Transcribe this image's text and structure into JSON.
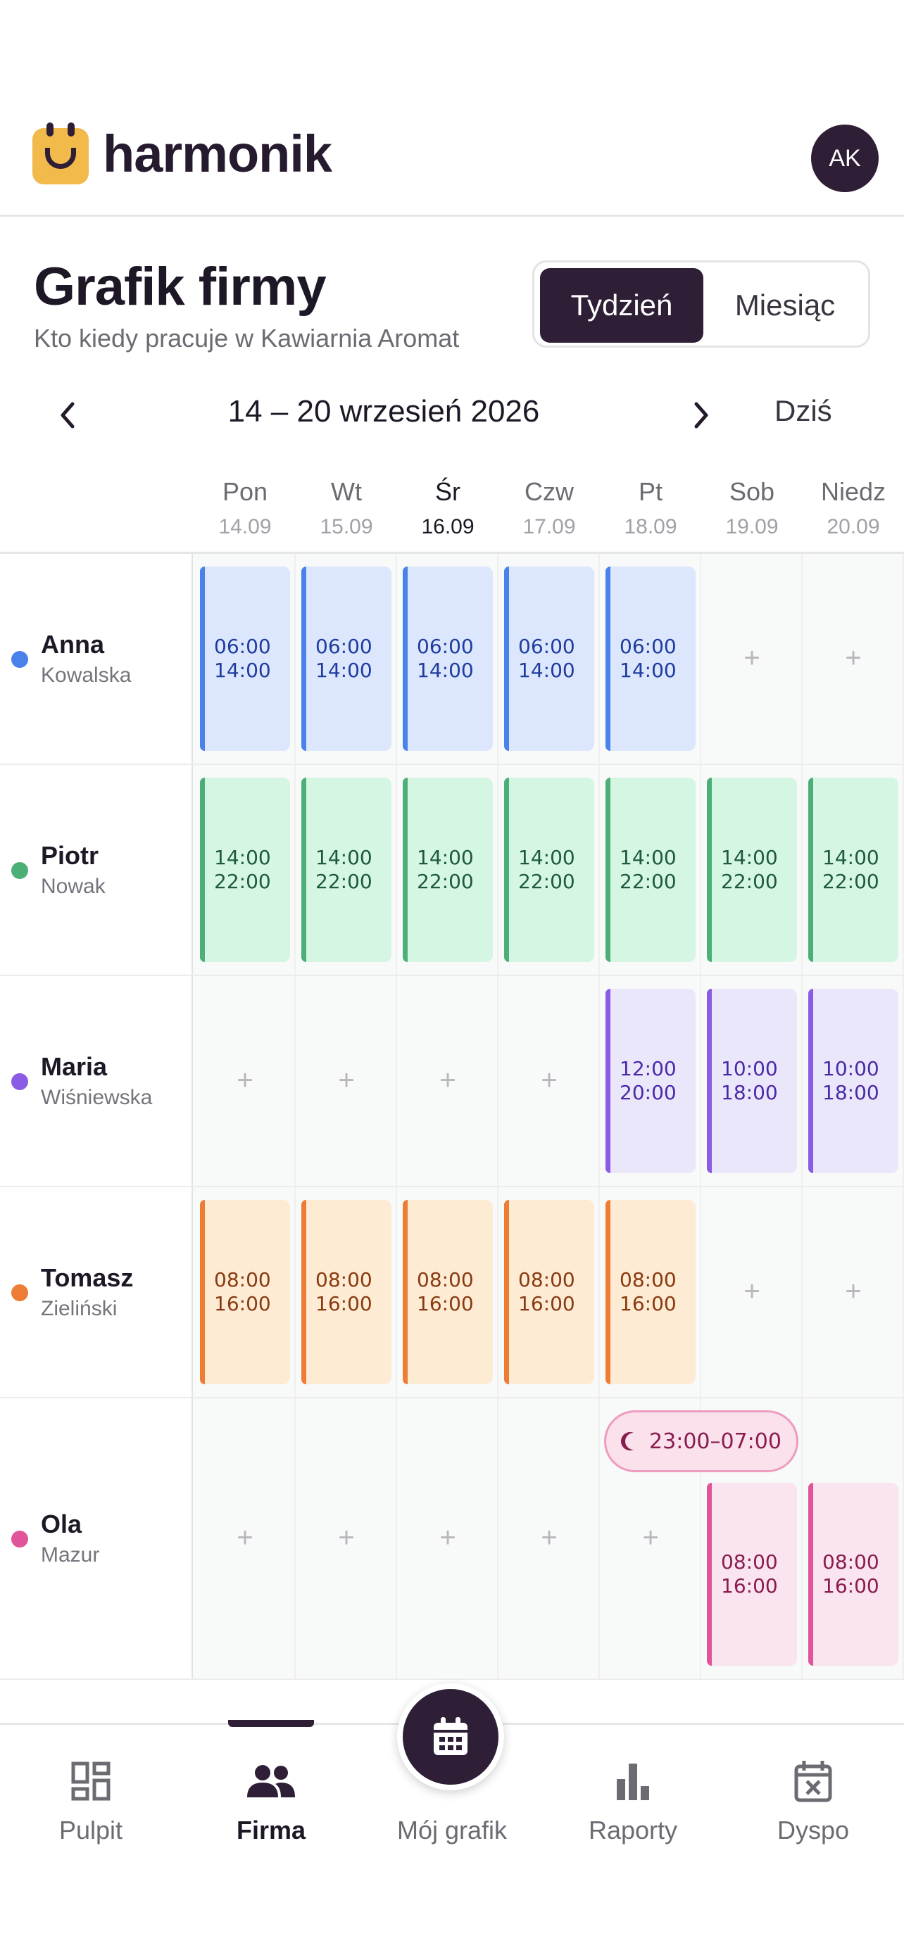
{
  "brand": {
    "name": "harmonik",
    "avatar_initials": "AK"
  },
  "header": {
    "title": "Grafik firmy",
    "subtitle": "Kto kiedy pracuje w Kawiarnia Aromat"
  },
  "view_toggle": {
    "week": "Tydzień",
    "month": "Miesiąc",
    "selected": "Tydzień"
  },
  "week_nav": {
    "range": "14 – 20 wrzesień 2026",
    "today": "Dziś"
  },
  "days": [
    {
      "name": "Pon",
      "date": "14.09"
    },
    {
      "name": "Wt",
      "date": "15.09"
    },
    {
      "name": "Śr",
      "date": "16.09",
      "current": true
    },
    {
      "name": "Czw",
      "date": "17.09"
    },
    {
      "name": "Pt",
      "date": "18.09"
    },
    {
      "name": "Sob",
      "date": "19.09"
    },
    {
      "name": "Niedz",
      "date": "20.09"
    }
  ],
  "add_symbol": "+",
  "employees": [
    {
      "first": "Anna",
      "last": "Kowalska",
      "color": "#4a82ec",
      "shifts": [
        {
          "start": "06:00",
          "end": "14:00"
        },
        {
          "start": "06:00",
          "end": "14:00"
        },
        {
          "start": "06:00",
          "end": "14:00"
        },
        {
          "start": "06:00",
          "end": "14:00"
        },
        {
          "start": "06:00",
          "end": "14:00"
        },
        null,
        null
      ]
    },
    {
      "first": "Piotr",
      "last": "Nowak",
      "color": "#4caf78",
      "shifts": [
        {
          "start": "14:00",
          "end": "22:00"
        },
        {
          "start": "14:00",
          "end": "22:00"
        },
        {
          "start": "14:00",
          "end": "22:00"
        },
        {
          "start": "14:00",
          "end": "22:00"
        },
        {
          "start": "14:00",
          "end": "22:00"
        },
        {
          "start": "14:00",
          "end": "22:00"
        },
        {
          "start": "14:00",
          "end": "22:00"
        }
      ]
    },
    {
      "first": "Maria",
      "last": "Wiśniewska",
      "color": "#8a5ce6",
      "shifts": [
        null,
        null,
        null,
        null,
        {
          "start": "12:00",
          "end": "20:00"
        },
        {
          "start": "10:00",
          "end": "18:00"
        },
        {
          "start": "10:00",
          "end": "18:00"
        }
      ]
    },
    {
      "first": "Tomasz",
      "last": "Zieliński",
      "color": "#ed7d34",
      "shifts": [
        {
          "start": "08:00",
          "end": "16:00"
        },
        {
          "start": "08:00",
          "end": "16:00"
        },
        {
          "start": "08:00",
          "end": "16:00"
        },
        {
          "start": "08:00",
          "end": "16:00"
        },
        {
          "start": "08:00",
          "end": "16:00"
        },
        null,
        null
      ]
    },
    {
      "first": "Ola",
      "last": "Mazur",
      "color": "#e0559a",
      "shifts": [
        null,
        null,
        null,
        null,
        null,
        {
          "start": "08:00",
          "end": "16:00"
        },
        {
          "start": "08:00",
          "end": "16:00"
        }
      ]
    }
  ],
  "night_shift": {
    "label": "23:00–07:00",
    "icon": "moon-icon"
  },
  "bottom_nav": [
    {
      "label": "Pulpit",
      "icon": "dashboard-icon"
    },
    {
      "label": "Firma",
      "icon": "people-icon",
      "active": true
    },
    {
      "label": "Mój grafik",
      "icon": "calendar-icon"
    },
    {
      "label": "Raporty",
      "icon": "bar-chart-icon"
    },
    {
      "label": "Dyspo",
      "icon": "calendar-x-icon"
    }
  ]
}
